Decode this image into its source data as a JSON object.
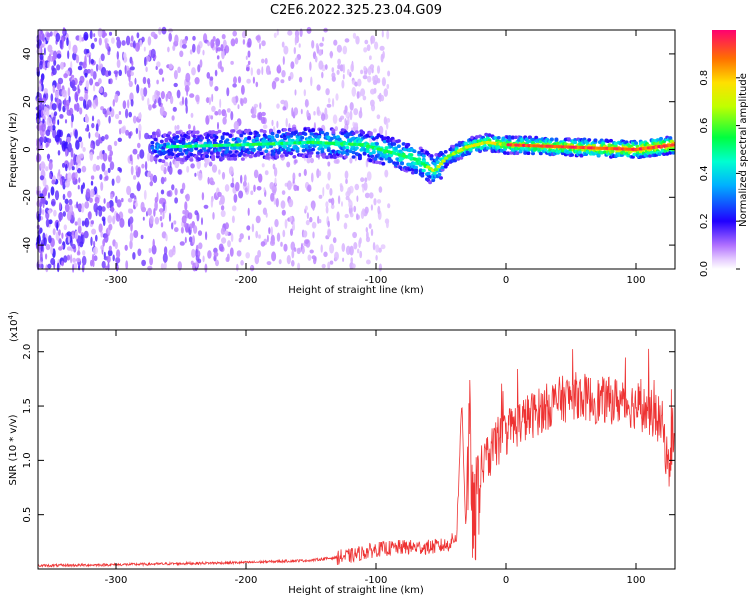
{
  "title": "C2E6.2022.325.23.04.G09",
  "chart_data": [
    {
      "type": "heatmap",
      "xlabel": "Height of straight line (km)",
      "ylabel": "Frequency (Hz)",
      "xlim": [
        -360,
        130
      ],
      "ylim": [
        -50,
        50
      ],
      "xticks": [
        -300,
        -200,
        -100,
        0,
        100
      ],
      "yticks": [
        -40,
        -20,
        0,
        20,
        40
      ],
      "colorbar": {
        "label": "Normalized spectral amplitude",
        "range": [
          0.0,
          1.0
        ],
        "ticks": [
          "0.0",
          "0.2",
          "0.4",
          "0.6",
          "0.8"
        ],
        "tick_values": [
          0.0,
          0.2,
          0.4,
          0.6,
          0.8
        ],
        "colormap": "rainbow"
      },
      "ridge": {
        "x": [
          -270,
          -200,
          -150,
          -110,
          -90,
          -70,
          -55,
          -45,
          -30,
          -15,
          0,
          50,
          100,
          130
        ],
        "y": [
          1,
          2,
          3,
          2,
          -1,
          -4,
          -9,
          -3,
          1,
          3,
          2,
          1,
          0,
          2
        ]
      }
    },
    {
      "type": "line",
      "xlabel": "Height of straight line (km)",
      "ylabel": "SNR (10 * v/v)",
      "multiplier_label": "(x10",
      "multiplier_exp": "4",
      "multiplier_close": ")",
      "xlim": [
        -360,
        130
      ],
      "ylim": [
        0,
        2.2
      ],
      "xticks": [
        -300,
        -200,
        -100,
        0,
        100
      ],
      "yticks": [
        "0.5",
        "1.0",
        "1.5",
        "2.0"
      ],
      "ytick_values": [
        0.5,
        1.0,
        1.5,
        2.0
      ],
      "color": "#ee3333",
      "series": [
        {
          "x": [
            -360,
            -300,
            -250,
            -200,
            -150,
            -120,
            -100,
            -80,
            -60,
            -45,
            -38,
            -34,
            -31,
            -28,
            -25,
            -20,
            -10,
            0,
            10,
            25,
            40,
            55,
            70,
            85,
            100,
            110,
            120,
            125,
            130
          ],
          "y": [
            0.03,
            0.04,
            0.05,
            0.06,
            0.08,
            0.12,
            0.18,
            0.2,
            0.2,
            0.22,
            0.3,
            1.55,
            0.4,
            1.3,
            0.3,
            0.9,
            1.1,
            1.25,
            1.35,
            1.45,
            1.55,
            1.6,
            1.55,
            1.55,
            1.5,
            1.45,
            1.35,
            0.9,
            1.4
          ]
        }
      ]
    }
  ]
}
